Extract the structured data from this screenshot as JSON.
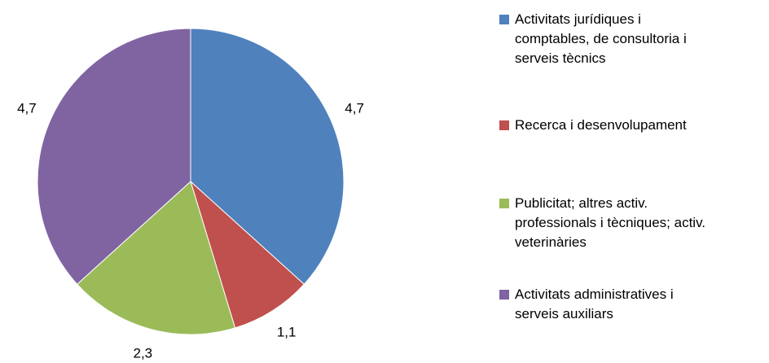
{
  "chart_data": {
    "type": "pie",
    "categories": [
      "Activitats jurídiques i comptables, de consultoria i serveis tècnics",
      "Recerca i desenvolupament",
      "Publicitat; altres activ. professionals i tècniques; activ. veterinàries",
      "Activitats administratives i serveis auxiliars"
    ],
    "values": [
      4.7,
      1.1,
      2.3,
      4.7
    ],
    "value_labels": [
      "4,7",
      "1,1",
      "2,3",
      "4,7"
    ],
    "colors": [
      "#4f81bd",
      "#c0504d",
      "#9bbb59",
      "#8064a2"
    ],
    "legend": "right"
  }
}
